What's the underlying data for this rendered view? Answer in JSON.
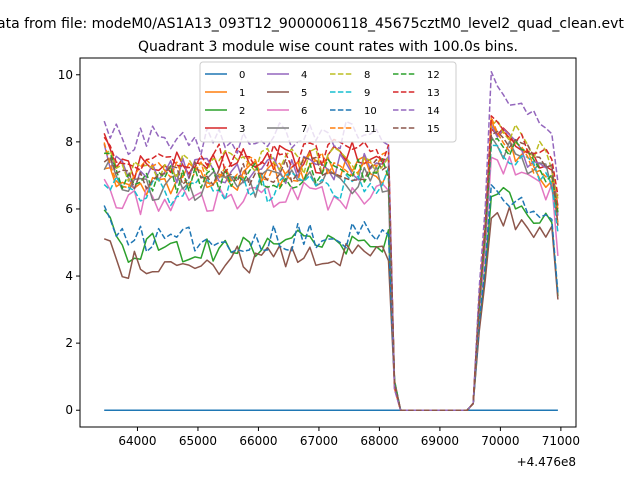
{
  "figure": {
    "suptitle": "ata from file: modeM0/AS1A13_093T12_9000006118_45675cztM0_level2_quad_clean.evt",
    "title": "Quadrant 3 module wise count rates with 100.0s bins.",
    "x_offset_label": "+4.476e8"
  },
  "chart_data": {
    "type": "line",
    "title": "Quadrant 3 module wise count rates with 100.0s bins.",
    "xlabel": "",
    "ylabel": "",
    "x_offset": 447600000,
    "xlim": [
      63050,
      71250
    ],
    "ylim": [
      -0.5,
      10.5
    ],
    "grid": false,
    "legend_position": "top-center",
    "legend_columns": 4,
    "x_ticks": [
      64000,
      65000,
      66000,
      67000,
      68000,
      69000,
      70000,
      71000
    ],
    "x_tick_labels": [
      "64000",
      "65000",
      "66000",
      "67000",
      "68000",
      "69000",
      "70000",
      "71000"
    ],
    "y_ticks": [
      0,
      2,
      4,
      6,
      8,
      10
    ],
    "y_tick_labels": [
      "0",
      "2",
      "4",
      "6",
      "8",
      "10"
    ],
    "x_start": 63450,
    "x_step": 100,
    "gap_index_start": 49,
    "gap_index_end": 53,
    "series": [
      {
        "name": "0",
        "color": "#1f77b4",
        "dash": "solid",
        "active": [
          0.0,
          0.0
        ],
        "after": [
          0.0,
          0.0
        ],
        "end": 0.0,
        "constant": 0.0
      },
      {
        "name": "1",
        "color": "#ff7f0e",
        "dash": "solid",
        "active": [
          6.8,
          7.2
        ],
        "after": [
          6.8,
          8.4
        ],
        "end": 5.6
      },
      {
        "name": "2",
        "color": "#2ca02c",
        "dash": "solid",
        "active": [
          4.8,
          5.0
        ],
        "after": [
          5.5,
          6.6
        ],
        "end": 3.4
      },
      {
        "name": "3",
        "color": "#d62728",
        "dash": "solid",
        "active": [
          7.2,
          7.6
        ],
        "after": [
          7.0,
          8.4
        ],
        "end": 6.1
      },
      {
        "name": "4",
        "color": "#9467bd",
        "dash": "solid",
        "active": [
          7.0,
          7.3
        ],
        "after": [
          7.1,
          8.3
        ],
        "end": 5.8
      },
      {
        "name": "5",
        "color": "#8c564b",
        "dash": "solid",
        "active": [
          4.3,
          4.7
        ],
        "after": [
          5.2,
          6.0
        ],
        "end": 3.3
      },
      {
        "name": "6",
        "color": "#e377c2",
        "dash": "solid",
        "active": [
          6.2,
          6.4
        ],
        "after": [
          6.4,
          7.6
        ],
        "end": 4.6
      },
      {
        "name": "7",
        "color": "#7f7f7f",
        "dash": "solid",
        "active": [
          6.6,
          6.9
        ],
        "after": [
          6.9,
          8.0
        ],
        "end": 5.9
      },
      {
        "name": "8",
        "color": "#bcbd22",
        "dash": "dashed",
        "active": [
          7.2,
          7.5
        ],
        "after": [
          7.4,
          8.8
        ],
        "end": 6.3
      },
      {
        "name": "9",
        "color": "#17becf",
        "dash": "dashed",
        "active": [
          6.4,
          6.8
        ],
        "after": [
          6.9,
          8.0
        ],
        "end": 5.3
      },
      {
        "name": "10",
        "color": "#1f77b4",
        "dash": "dashed",
        "active": [
          5.0,
          5.3
        ],
        "after": [
          5.8,
          6.6
        ],
        "end": 3.5
      },
      {
        "name": "11",
        "color": "#ff7f0e",
        "dash": "dashed",
        "active": [
          7.0,
          7.4
        ],
        "after": [
          7.0,
          8.4
        ],
        "end": 6.0
      },
      {
        "name": "12",
        "color": "#2ca02c",
        "dash": "dashed",
        "active": [
          6.8,
          7.1
        ],
        "after": [
          7.0,
          8.2
        ],
        "end": 5.9
      },
      {
        "name": "13",
        "color": "#d62728",
        "dash": "dashed",
        "active": [
          7.4,
          7.7
        ],
        "after": [
          7.4,
          8.7
        ],
        "end": 6.4
      },
      {
        "name": "14",
        "color": "#9467bd",
        "dash": "dashed",
        "active": [
          8.0,
          8.2
        ],
        "after": [
          8.1,
          9.8
        ],
        "end": 6.8
      },
      {
        "name": "15",
        "color": "#8c564b",
        "dash": "dashed",
        "active": [
          6.9,
          7.2
        ],
        "after": [
          7.1,
          8.4
        ],
        "end": 5.5
      }
    ]
  }
}
